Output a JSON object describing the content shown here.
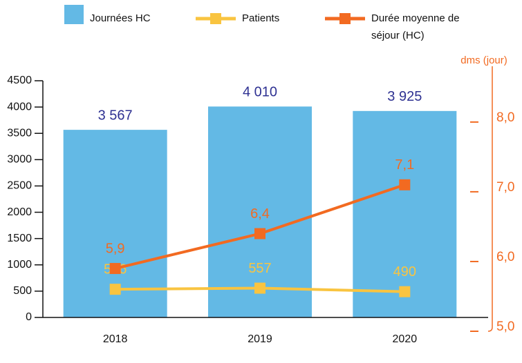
{
  "chart_data": {
    "type": "bar",
    "categories": [
      "2018",
      "2019",
      "2020"
    ],
    "series": [
      {
        "name": "Journées HC",
        "type": "bar",
        "color": "#63b9e5",
        "values": [
          3567,
          4010,
          3925
        ],
        "value_labels": [
          "3 567",
          "4 010",
          "3 925"
        ]
      },
      {
        "name": "Patients",
        "type": "line",
        "color": "#f9c440",
        "values": [
          536,
          557,
          490
        ]
      },
      {
        "name": "Durée moyenne de séjour (HC)",
        "type": "line",
        "axis": "y2",
        "color": "#f26a21",
        "values": [
          5.9,
          6.4,
          7.1
        ],
        "value_labels": [
          "5,9",
          "6,4",
          "7,1"
        ]
      }
    ],
    "ylim": [
      0,
      4500
    ],
    "yticks": [
      0,
      500,
      1000,
      1500,
      2000,
      2500,
      3000,
      3500,
      4000,
      4500
    ],
    "y2label": "dms (jour)",
    "y2lim": [
      5,
      8.8
    ],
    "y2ticks": [
      {
        "value": 5,
        "label": "5,0"
      },
      {
        "value": 6,
        "label": "6,0"
      },
      {
        "value": 7,
        "label": "7,0"
      },
      {
        "value": 8,
        "label": "8,0"
      }
    ],
    "legend": "top"
  }
}
